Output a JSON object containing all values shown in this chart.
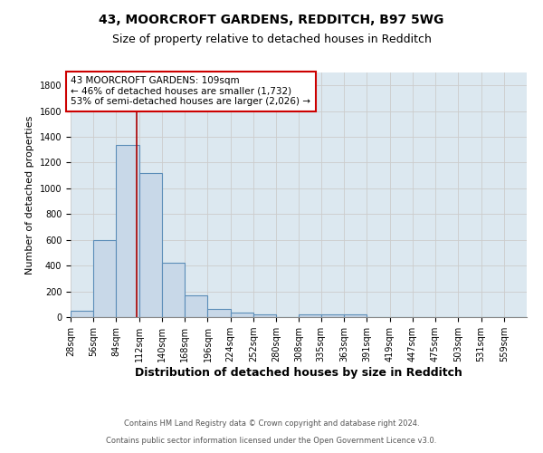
{
  "title1": "43, MOORCROFT GARDENS, REDDITCH, B97 5WG",
  "title2": "Size of property relative to detached houses in Redditch",
  "xlabel": "Distribution of detached houses by size in Redditch",
  "ylabel": "Number of detached properties",
  "bin_edges": [
    28,
    56,
    84,
    112,
    140,
    168,
    196,
    224,
    252,
    280,
    308,
    335,
    363,
    391,
    419,
    447,
    475,
    503,
    531,
    559,
    587
  ],
  "bar_heights": [
    50,
    600,
    1340,
    1120,
    420,
    170,
    60,
    35,
    20,
    0,
    20,
    20,
    20,
    0,
    0,
    0,
    0,
    0,
    0,
    0
  ],
  "bar_color": "#c8d8e8",
  "bar_edge_color": "#5b8db8",
  "bar_linewidth": 0.8,
  "vline_x": 109,
  "vline_color": "#aa0000",
  "vline_linewidth": 1.2,
  "annotation_text": "43 MOORCROFT GARDENS: 109sqm\n← 46% of detached houses are smaller (1,732)\n53% of semi-detached houses are larger (2,026) →",
  "annotation_box_color": "#ffffff",
  "annotation_box_edge_color": "#cc0000",
  "annotation_fontsize": 7.5,
  "ylim": [
    0,
    1900
  ],
  "yticks": [
    0,
    200,
    400,
    600,
    800,
    1000,
    1200,
    1400,
    1600,
    1800
  ],
  "grid_color": "#cccccc",
  "bg_color": "#dce8f0",
  "footnote1": "Contains HM Land Registry data © Crown copyright and database right 2024.",
  "footnote2": "Contains public sector information licensed under the Open Government Licence v3.0.",
  "title1_fontsize": 10,
  "title2_fontsize": 9,
  "xlabel_fontsize": 9,
  "ylabel_fontsize": 8,
  "tick_fontsize": 7
}
